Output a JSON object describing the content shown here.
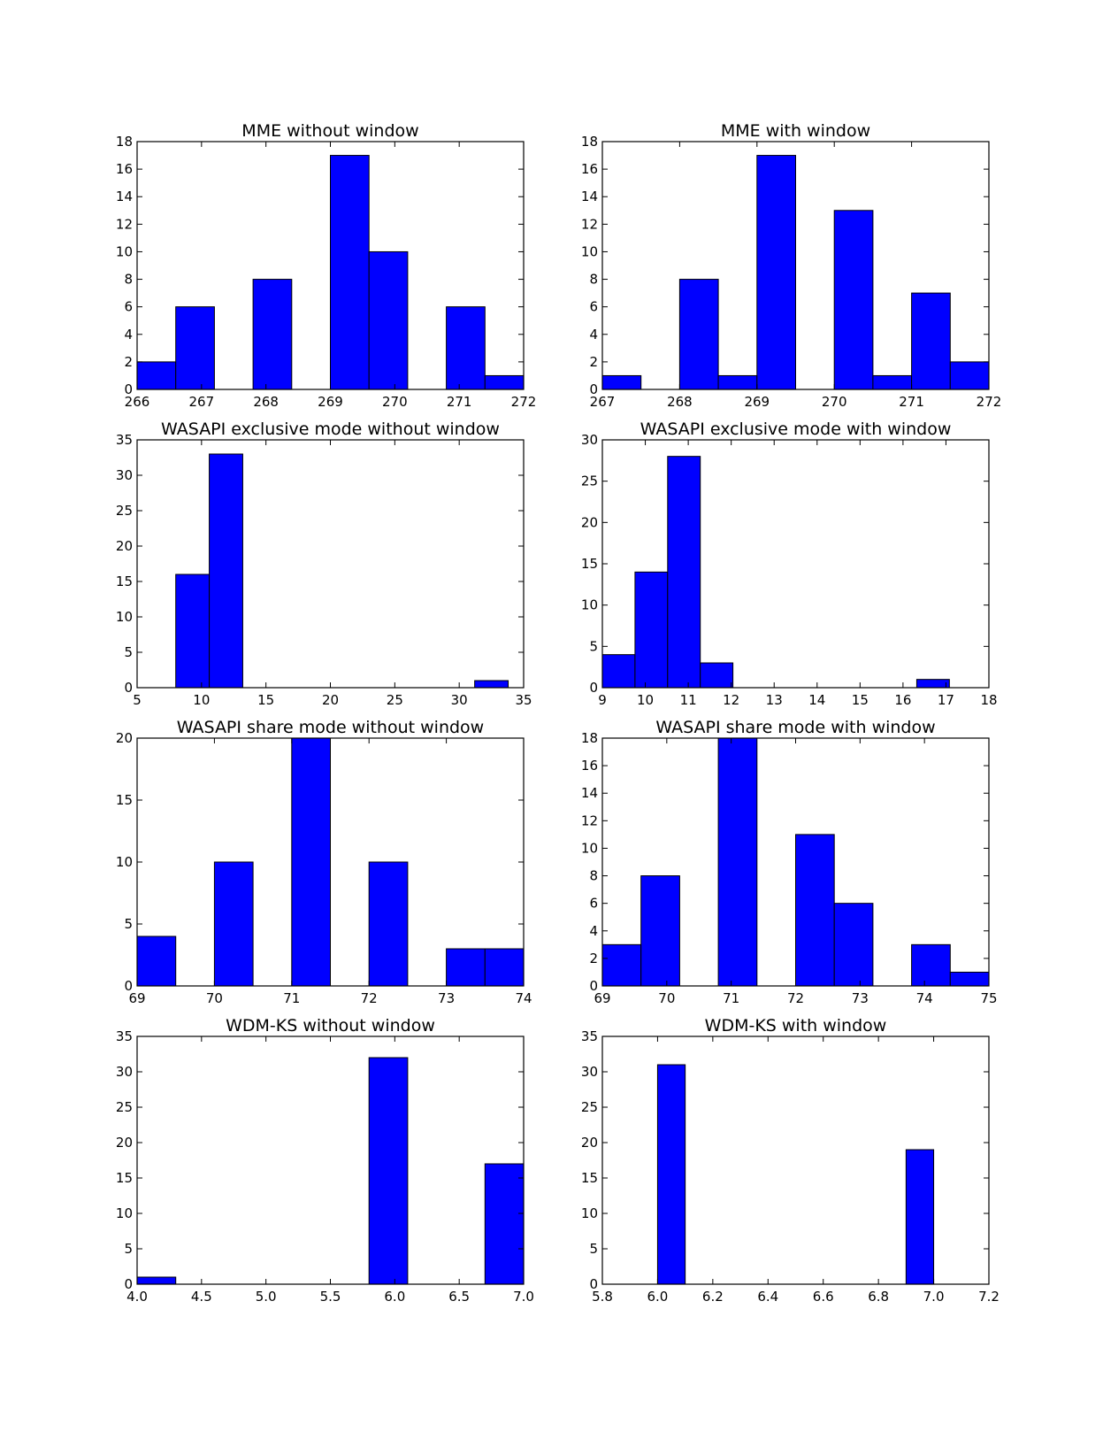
{
  "chart_data": [
    {
      "type": "bar",
      "title": "MME without window",
      "xlim": [
        266,
        272
      ],
      "ylim": [
        0,
        18
      ],
      "xticks": [
        "266",
        "267",
        "268",
        "269",
        "270",
        "271",
        "272"
      ],
      "yticks": [
        "0",
        "2",
        "4",
        "6",
        "8",
        "10",
        "12",
        "14",
        "16",
        "18"
      ],
      "bins": [
        [
          266,
          266.6
        ],
        [
          266.6,
          267.2
        ],
        [
          267.2,
          267.8
        ],
        [
          267.8,
          268.4
        ],
        [
          268.4,
          269.0
        ],
        [
          269.0,
          269.6
        ],
        [
          269.6,
          270.2
        ],
        [
          270.2,
          270.8
        ],
        [
          270.8,
          271.4
        ],
        [
          271.4,
          272.0
        ]
      ],
      "values": [
        2,
        6,
        0,
        8,
        0,
        17,
        10,
        0,
        6,
        1
      ]
    },
    {
      "type": "bar",
      "title": "MME with window",
      "xlim": [
        267,
        272
      ],
      "ylim": [
        0,
        18
      ],
      "xticks": [
        "267",
        "268",
        "269",
        "270",
        "271",
        "272"
      ],
      "yticks": [
        "0",
        "2",
        "4",
        "6",
        "8",
        "10",
        "12",
        "14",
        "16",
        "18"
      ],
      "bins": [
        [
          267,
          267.5
        ],
        [
          267.5,
          268
        ],
        [
          268,
          268.5
        ],
        [
          268.5,
          269
        ],
        [
          269,
          269.5
        ],
        [
          269.5,
          270
        ],
        [
          270,
          270.5
        ],
        [
          270.5,
          271
        ],
        [
          271,
          271.5
        ],
        [
          271.5,
          272
        ]
      ],
      "values": [
        1,
        0,
        8,
        1,
        17,
        0,
        13,
        1,
        7,
        2
      ]
    },
    {
      "type": "bar",
      "title": "WASAPI exclusive mode without window",
      "xlim": [
        5,
        35
      ],
      "ylim": [
        0,
        35
      ],
      "xticks": [
        "5",
        "10",
        "15",
        "20",
        "25",
        "30",
        "35"
      ],
      "yticks": [
        "0",
        "5",
        "10",
        "15",
        "20",
        "25",
        "30",
        "35"
      ],
      "bins": [
        [
          8,
          10.6
        ],
        [
          10.6,
          13.2
        ],
        [
          31.2,
          33.8
        ]
      ],
      "values": [
        16,
        33,
        1
      ]
    },
    {
      "type": "bar",
      "title": "WASAPI exclusive mode with window",
      "xlim": [
        9,
        18
      ],
      "ylim": [
        0,
        30
      ],
      "xticks": [
        "9",
        "10",
        "11",
        "12",
        "13",
        "14",
        "15",
        "16",
        "17",
        "18"
      ],
      "yticks": [
        "0",
        "5",
        "10",
        "15",
        "20",
        "25",
        "30"
      ],
      "bins": [
        [
          9,
          9.76
        ],
        [
          9.76,
          10.52
        ],
        [
          10.52,
          11.28
        ],
        [
          11.28,
          12.04
        ],
        [
          16.32,
          17.08
        ]
      ],
      "values": [
        4,
        14,
        28,
        3,
        1
      ]
    },
    {
      "type": "bar",
      "title": "WASAPI share mode without window",
      "xlim": [
        69,
        74
      ],
      "ylim": [
        0,
        20
      ],
      "xticks": [
        "69",
        "70",
        "71",
        "72",
        "73",
        "74"
      ],
      "yticks": [
        "0",
        "5",
        "10",
        "15",
        "20"
      ],
      "bins": [
        [
          69,
          69.5
        ],
        [
          69.5,
          70
        ],
        [
          70,
          70.5
        ],
        [
          70.5,
          71
        ],
        [
          71,
          71.5
        ],
        [
          71.5,
          72
        ],
        [
          72,
          72.5
        ],
        [
          72.5,
          73
        ],
        [
          73,
          73.5
        ],
        [
          73.5,
          74
        ]
      ],
      "values": [
        4,
        0,
        10,
        0,
        20,
        0,
        10,
        0,
        3,
        3
      ]
    },
    {
      "type": "bar",
      "title": "WASAPI share mode with window",
      "xlim": [
        69,
        75
      ],
      "ylim": [
        0,
        18
      ],
      "xticks": [
        "69",
        "70",
        "71",
        "72",
        "73",
        "74",
        "75"
      ],
      "yticks": [
        "0",
        "2",
        "4",
        "6",
        "8",
        "10",
        "12",
        "14",
        "16",
        "18"
      ],
      "bins": [
        [
          69,
          69.6
        ],
        [
          69.6,
          70.2
        ],
        [
          70.2,
          70.8
        ],
        [
          70.8,
          71.4
        ],
        [
          71.4,
          72.0
        ],
        [
          72.0,
          72.6
        ],
        [
          72.6,
          73.2
        ],
        [
          73.2,
          73.8
        ],
        [
          73.8,
          74.4
        ],
        [
          74.4,
          75.0
        ]
      ],
      "values": [
        3,
        8,
        0,
        18,
        0,
        11,
        6,
        0,
        3,
        1
      ]
    },
    {
      "type": "bar",
      "title": "WDM-KS without window",
      "xlim": [
        4.0,
        7.0
      ],
      "ylim": [
        0,
        35
      ],
      "xticks": [
        "4.0",
        "4.5",
        "5.0",
        "5.5",
        "6.0",
        "6.5",
        "7.0"
      ],
      "yticks": [
        "0",
        "5",
        "10",
        "15",
        "20",
        "25",
        "30",
        "35"
      ],
      "bins": [
        [
          4.0,
          4.3
        ],
        [
          5.8,
          6.1
        ],
        [
          6.7,
          7.0
        ]
      ],
      "values": [
        1,
        32,
        17
      ]
    },
    {
      "type": "bar",
      "title": "WDM-KS with window",
      "xlim": [
        5.8,
        7.2
      ],
      "ylim": [
        0,
        35
      ],
      "xticks": [
        "5.8",
        "6.0",
        "6.2",
        "6.4",
        "6.6",
        "6.8",
        "7.0",
        "7.2"
      ],
      "yticks": [
        "0",
        "5",
        "10",
        "15",
        "20",
        "25",
        "30",
        "35"
      ],
      "bins": [
        [
          6.0,
          6.1
        ],
        [
          6.9,
          7.0
        ]
      ],
      "values": [
        31,
        19
      ]
    }
  ]
}
